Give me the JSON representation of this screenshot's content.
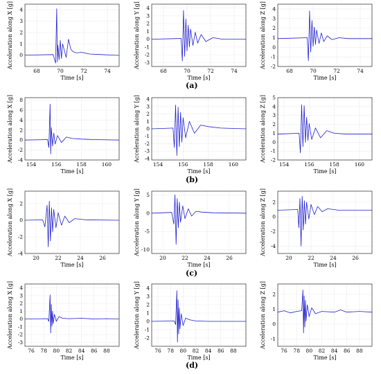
{
  "rows": [
    {
      "label": "(a)"
    },
    {
      "label": "(b)"
    },
    {
      "label": "(c)"
    },
    {
      "label": "(d)"
    }
  ],
  "chart_data": [
    {
      "type": "line",
      "title": "",
      "xlabel": "Time [s]",
      "ylabel": "Acceleration along X [g]",
      "xlim": [
        67,
        75
      ],
      "ylim": [
        -1,
        4.5
      ],
      "xticks": [
        68,
        70,
        72,
        74
      ],
      "yticks": [
        0,
        1,
        2,
        3,
        4
      ],
      "grid": true,
      "series": [
        {
          "x": [
            67,
            69.4,
            69.6,
            69.7,
            69.75,
            69.8,
            69.9,
            70.0,
            70.1,
            70.2,
            70.3,
            70.5,
            70.7,
            70.9,
            71.1,
            71.4,
            71.8,
            72.5,
            73.5,
            75
          ],
          "y": [
            0.0,
            0.05,
            -0.7,
            4.1,
            -0.6,
            0.9,
            -0.4,
            1.3,
            -0.3,
            1.0,
            0.6,
            -0.2,
            1.4,
            0.5,
            0.3,
            0.2,
            0.25,
            0.1,
            0.05,
            -0.02
          ]
        }
      ]
    },
    {
      "type": "line",
      "title": "",
      "xlabel": "Time [s]",
      "ylabel": "Acceleration along Y [g]",
      "xlim": [
        67,
        75
      ],
      "ylim": [
        -3.5,
        4.5
      ],
      "xticks": [
        68,
        70,
        72,
        74
      ],
      "yticks": [
        -3,
        -2,
        -1,
        0,
        1,
        2,
        3,
        4
      ],
      "grid": true,
      "series": [
        {
          "x": [
            67,
            69.5,
            69.6,
            69.7,
            69.8,
            69.9,
            70.0,
            70.1,
            70.2,
            70.3,
            70.5,
            70.7,
            70.9,
            71.2,
            71.6,
            72.2,
            73,
            75
          ],
          "y": [
            0.0,
            0.1,
            -2.8,
            3.7,
            -2.2,
            2.6,
            -1.5,
            1.8,
            -1.0,
            1.3,
            -0.8,
            0.9,
            -0.5,
            0.6,
            -0.3,
            0.2,
            0.0,
            0.0
          ]
        }
      ]
    },
    {
      "type": "line",
      "title": "",
      "xlabel": "Time [s]",
      "ylabel": "Acceleration along Z [g]",
      "xlim": [
        67,
        75
      ],
      "ylim": [
        -2,
        4.5
      ],
      "xticks": [
        68,
        70,
        72,
        74
      ],
      "yticks": [
        -2,
        -1,
        0,
        1,
        2,
        3,
        4
      ],
      "grid": true,
      "series": [
        {
          "x": [
            67,
            69.5,
            69.6,
            69.7,
            69.8,
            69.9,
            70.0,
            70.1,
            70.2,
            70.3,
            70.5,
            70.7,
            70.9,
            71.2,
            71.6,
            72.2,
            73,
            75
          ],
          "y": [
            0.9,
            1.0,
            -1.4,
            3.8,
            -0.5,
            2.8,
            0.1,
            2.1,
            0.3,
            1.8,
            0.4,
            1.5,
            0.6,
            1.2,
            0.8,
            1.0,
            0.9,
            0.9
          ]
        }
      ]
    },
    {
      "type": "line",
      "title": "",
      "xlabel": "Time [s]",
      "ylabel": "Acceleration along X [g]",
      "xlim": [
        153.5,
        161
      ],
      "ylim": [
        -4,
        8.5
      ],
      "xticks": [
        154,
        156,
        158,
        160
      ],
      "yticks": [
        -4,
        -2,
        0,
        2,
        4,
        6,
        8
      ],
      "grid": true,
      "series": [
        {
          "x": [
            153.5,
            155.3,
            155.4,
            155.5,
            155.55,
            155.6,
            155.7,
            155.8,
            155.9,
            156.1,
            156.4,
            156.8,
            157.3,
            158,
            159,
            161
          ],
          "y": [
            0.0,
            0.1,
            -1.5,
            7.2,
            -2.8,
            2.5,
            -1.2,
            1.4,
            -0.8,
            0.9,
            -0.5,
            0.6,
            0.3,
            0.2,
            0.1,
            0.0
          ]
        }
      ]
    },
    {
      "type": "line",
      "title": "",
      "xlabel": "Time [s]",
      "ylabel": "Acceleration along Y [g]",
      "xlim": [
        153.5,
        161
      ],
      "ylim": [
        -4.2,
        4.2
      ],
      "xticks": [
        154,
        156,
        158,
        160
      ],
      "yticks": [
        -4,
        -3,
        -2,
        -1,
        0,
        1,
        2,
        3,
        4
      ],
      "grid": true,
      "series": [
        {
          "x": [
            153.5,
            155.2,
            155.3,
            155.4,
            155.5,
            155.6,
            155.7,
            155.8,
            155.9,
            156.0,
            156.2,
            156.5,
            156.9,
            157.4,
            158,
            159,
            161
          ],
          "y": [
            0.0,
            0.1,
            -2.5,
            3.2,
            -3.6,
            2.9,
            -2.4,
            2.2,
            -1.8,
            1.5,
            -1.2,
            1.0,
            -0.6,
            0.5,
            0.3,
            0.1,
            0.0
          ]
        }
      ]
    },
    {
      "type": "line",
      "title": "",
      "xlabel": "Time [s]",
      "ylabel": "Acceleration along Z [g]",
      "xlim": [
        153.5,
        161
      ],
      "ylim": [
        -2,
        5
      ],
      "xticks": [
        154,
        156,
        158,
        160
      ],
      "yticks": [
        -2,
        -1,
        0,
        1,
        2,
        3,
        4,
        5
      ],
      "grid": true,
      "series": [
        {
          "x": [
            153.5,
            155.2,
            155.3,
            155.4,
            155.5,
            155.6,
            155.7,
            155.8,
            155.9,
            156.0,
            156.2,
            156.5,
            156.9,
            157.4,
            158,
            159,
            161
          ],
          "y": [
            0.9,
            1.0,
            -1.2,
            4.2,
            -0.5,
            4.1,
            0.0,
            2.8,
            0.2,
            2.1,
            0.3,
            1.6,
            0.5,
            1.3,
            1.0,
            0.9,
            0.9
          ]
        }
      ]
    },
    {
      "type": "line",
      "title": "",
      "xlabel": "Time [s]",
      "ylabel": "Acceleration along X [g]",
      "xlim": [
        19,
        27.5
      ],
      "ylim": [
        -4,
        3.5
      ],
      "xticks": [
        20,
        22,
        24,
        26
      ],
      "yticks": [
        -4,
        -2,
        0,
        2
      ],
      "grid": true,
      "series": [
        {
          "x": [
            19,
            20.6,
            20.8,
            21.0,
            21.1,
            21.2,
            21.3,
            21.4,
            21.5,
            21.6,
            21.8,
            22.0,
            22.3,
            22.6,
            23,
            23.5,
            24.5,
            27.5
          ],
          "y": [
            0.0,
            0.05,
            -0.8,
            1.8,
            -3.2,
            2.3,
            -2.5,
            1.5,
            -1.4,
            1.3,
            -0.9,
            0.9,
            -0.6,
            0.5,
            -0.3,
            0.2,
            0.05,
            0.0
          ]
        }
      ]
    },
    {
      "type": "line",
      "title": "",
      "xlabel": "Time [s]",
      "ylabel": "Acceleration along Y [g]",
      "xlim": [
        19,
        27.5
      ],
      "ylim": [
        -11,
        6
      ],
      "xticks": [
        20,
        22,
        24,
        26
      ],
      "yticks": [
        -10,
        -5,
        0,
        5
      ],
      "grid": true,
      "series": [
        {
          "x": [
            19,
            20.8,
            21.0,
            21.1,
            21.2,
            21.3,
            21.4,
            21.5,
            21.6,
            21.8,
            22.0,
            22.3,
            22.6,
            23,
            23.5,
            24.5,
            27.5
          ],
          "y": [
            0.0,
            0.2,
            -3.0,
            5.0,
            -8.5,
            4.0,
            -4.0,
            3.0,
            -2.5,
            2.0,
            -1.5,
            1.2,
            -0.8,
            0.5,
            0.3,
            0.1,
            0.0
          ]
        }
      ]
    },
    {
      "type": "line",
      "title": "",
      "xlabel": "Time [s]",
      "ylabel": "Acceleration along Z [g]",
      "xlim": [
        19,
        27.5
      ],
      "ylim": [
        -5,
        3.5
      ],
      "xticks": [
        20,
        22,
        24,
        26
      ],
      "yticks": [
        -4,
        -2,
        0,
        2
      ],
      "grid": true,
      "series": [
        {
          "x": [
            19,
            20.8,
            20.9,
            21.0,
            21.1,
            21.2,
            21.3,
            21.4,
            21.5,
            21.6,
            21.8,
            22.0,
            22.3,
            22.6,
            23,
            23.5,
            24.5,
            27.5
          ],
          "y": [
            0.9,
            1.0,
            -1.5,
            2.5,
            -4.0,
            2.8,
            -1.8,
            2.2,
            -1.0,
            2.0,
            -0.3,
            1.7,
            0.3,
            1.4,
            0.7,
            1.1,
            0.9,
            0.9
          ]
        }
      ]
    },
    {
      "type": "line",
      "title": "",
      "xlabel": "Time [s]",
      "ylabel": "Acceleration along X [g]",
      "xlim": [
        75,
        90
      ],
      "ylim": [
        -3.5,
        4.5
      ],
      "xticks": [
        76,
        78,
        80,
        82,
        84,
        86,
        88
      ],
      "yticks": [
        -3,
        -2,
        -1,
        0,
        1,
        2,
        3,
        4
      ],
      "grid": true,
      "series": [
        {
          "x": [
            75,
            78.6,
            78.8,
            79.0,
            79.1,
            79.2,
            79.3,
            79.4,
            79.5,
            79.7,
            80.0,
            80.4,
            81,
            82,
            84,
            86,
            88,
            90
          ],
          "y": [
            0.0,
            0.05,
            -0.3,
            3.1,
            -1.8,
            1.9,
            -0.9,
            1.0,
            -0.6,
            0.6,
            -0.3,
            0.3,
            0.1,
            0.05,
            0.1,
            0.0,
            0.05,
            0.0
          ]
        }
      ]
    },
    {
      "type": "line",
      "title": "",
      "xlabel": "Time [s]",
      "ylabel": "Acceleration along Y [g]",
      "xlim": [
        75,
        90
      ],
      "ylim": [
        -3,
        4.5
      ],
      "xticks": [
        76,
        78,
        80,
        82,
        84,
        86,
        88
      ],
      "yticks": [
        -2,
        -1,
        0,
        1,
        2,
        3,
        4
      ],
      "grid": true,
      "series": [
        {
          "x": [
            75,
            78.6,
            78.8,
            79.0,
            79.1,
            79.2,
            79.3,
            79.4,
            79.5,
            79.7,
            80.0,
            80.4,
            81,
            82,
            84,
            86,
            88,
            90
          ],
          "y": [
            0.0,
            0.05,
            -0.4,
            3.7,
            -2.5,
            2.6,
            -1.5,
            1.6,
            -0.9,
            0.9,
            -0.5,
            0.4,
            0.2,
            0.05,
            0.0,
            0.0,
            0.0,
            0.0
          ]
        }
      ]
    },
    {
      "type": "line",
      "title": "",
      "xlabel": "Time [s]",
      "ylabel": "Acceleration along Z [g]",
      "xlim": [
        75,
        90
      ],
      "ylim": [
        -1.5,
        2.7
      ],
      "xticks": [
        76,
        78,
        80,
        82,
        84,
        86,
        88
      ],
      "yticks": [
        -1,
        0,
        1,
        2
      ],
      "grid": true,
      "series": [
        {
          "x": [
            75,
            76,
            77,
            78,
            78.8,
            79.0,
            79.1,
            79.2,
            79.3,
            79.4,
            79.5,
            79.7,
            80.0,
            80.4,
            81,
            82,
            84,
            85,
            86,
            88,
            90
          ],
          "y": [
            0.8,
            0.9,
            0.75,
            0.85,
            0.9,
            2.3,
            -0.6,
            1.9,
            -0.2,
            1.6,
            0.2,
            1.3,
            0.5,
            1.1,
            0.7,
            0.85,
            0.8,
            0.95,
            0.8,
            0.85,
            0.8
          ]
        }
      ]
    }
  ]
}
